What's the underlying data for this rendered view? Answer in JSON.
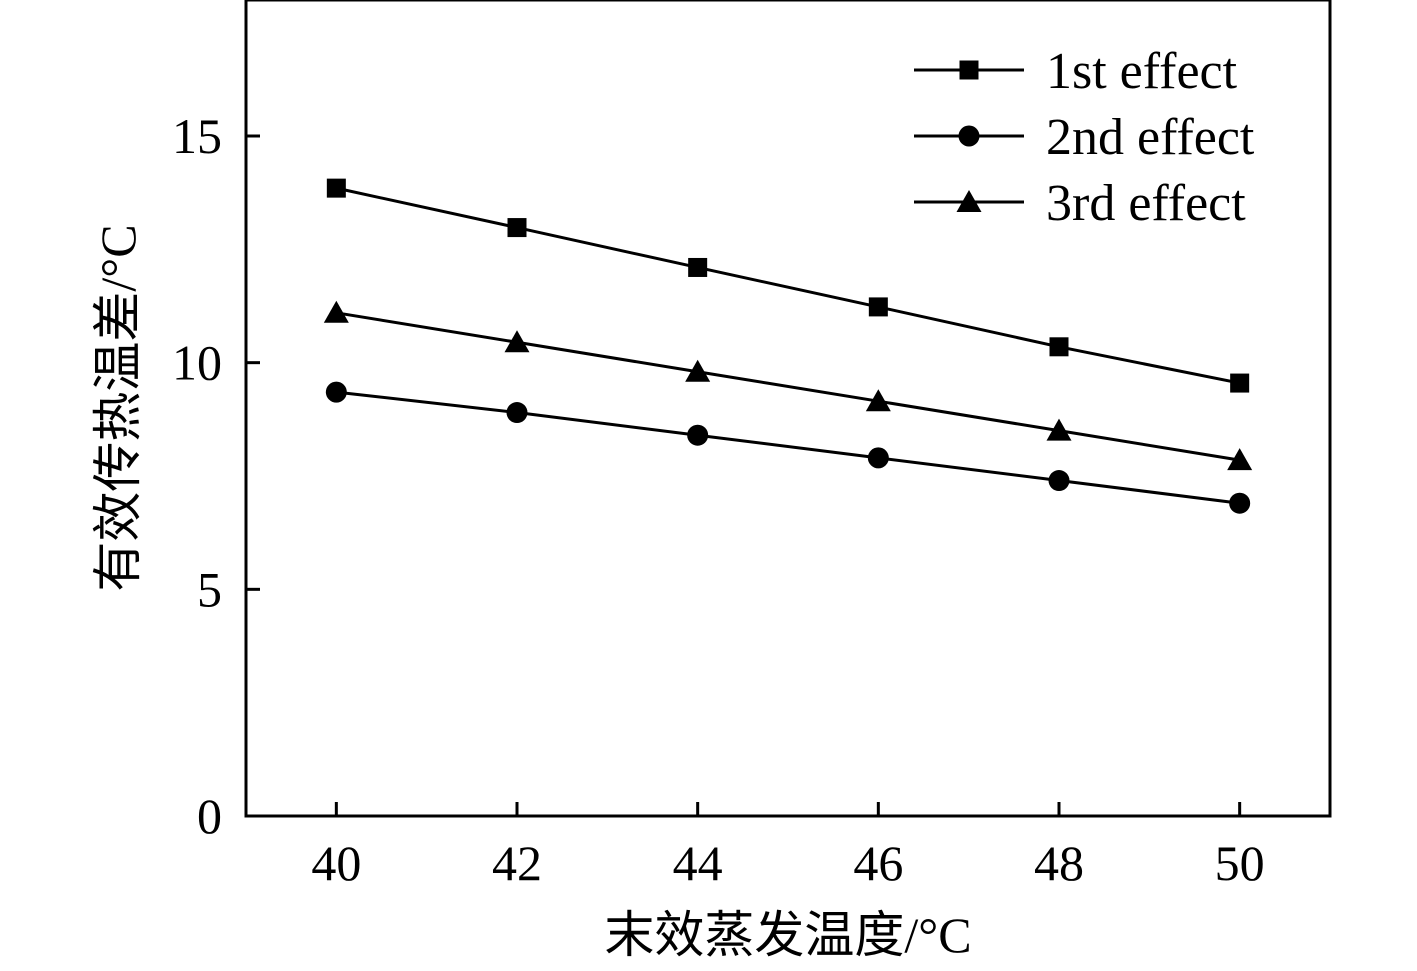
{
  "chart_data": {
    "type": "line",
    "title": "",
    "xlabel": "末效蒸发温度/°C",
    "ylabel": "有效传热温差/°C",
    "x": [
      40,
      42,
      44,
      46,
      48,
      50
    ],
    "xlim": [
      39,
      51
    ],
    "ylim": [
      0,
      18
    ],
    "xticks": [
      40,
      42,
      44,
      46,
      48,
      50
    ],
    "yticks": [
      0,
      5,
      10,
      15
    ],
    "grid": false,
    "legend_position": "top-right",
    "series": [
      {
        "name": "1st effect",
        "marker": "square",
        "color": "#000000",
        "values": [
          13.85,
          12.98,
          12.1,
          11.23,
          10.35,
          9.55
        ]
      },
      {
        "name": "2nd effect",
        "marker": "circle",
        "color": "#000000",
        "values": [
          9.35,
          8.9,
          8.4,
          7.9,
          7.4,
          6.9
        ]
      },
      {
        "name": "3rd effect",
        "marker": "triangle",
        "color": "#000000",
        "values": [
          11.1,
          10.45,
          9.8,
          9.15,
          8.5,
          7.85
        ]
      }
    ]
  }
}
